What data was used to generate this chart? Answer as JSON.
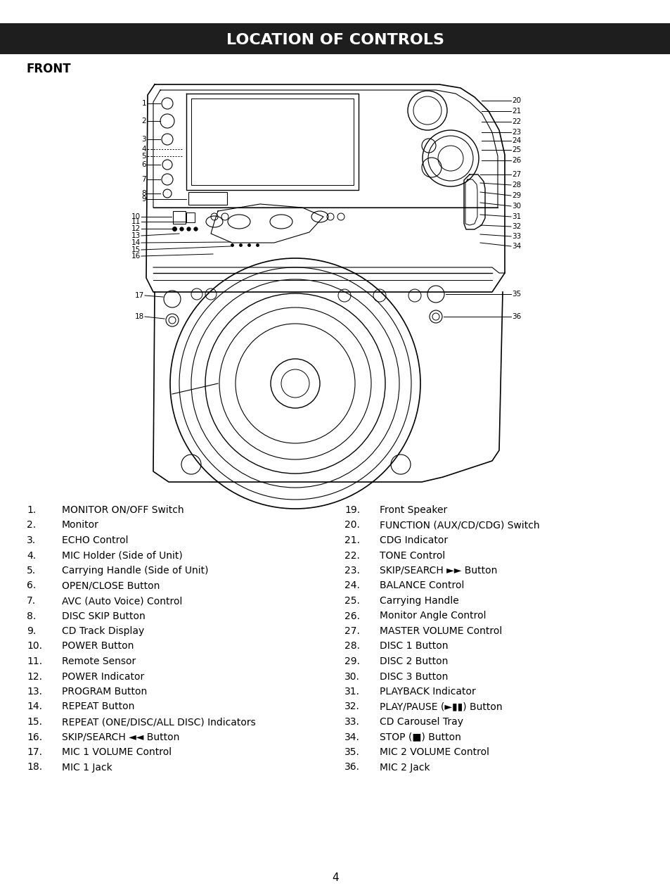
{
  "title": "LOCATION OF CONTROLS",
  "subtitle": "FRONT",
  "title_bg": "#1e1e1e",
  "title_color": "#ffffff",
  "page_number": "4",
  "left_items": [
    {
      "num": "1.",
      "text": "MONITOR ON/OFF Switch"
    },
    {
      "num": "2.",
      "text": "Monitor"
    },
    {
      "num": "3.",
      "text": "ECHO Control"
    },
    {
      "num": "4.",
      "text": "MIC Holder (Side of Unit)"
    },
    {
      "num": "5.",
      "text": "Carrying Handle (Side of Unit)"
    },
    {
      "num": "6.",
      "text": "OPEN/CLOSE Button"
    },
    {
      "num": "7.",
      "text": "AVC (Auto Voice) Control"
    },
    {
      "num": "8.",
      "text": "DISC SKIP Button"
    },
    {
      "num": "9.",
      "text": "CD Track Display"
    },
    {
      "num": "10.",
      "text": "POWER Button"
    },
    {
      "num": "11.",
      "text": "Remote Sensor"
    },
    {
      "num": "12.",
      "text": "POWER Indicator"
    },
    {
      "num": "13.",
      "text": "PROGRAM Button"
    },
    {
      "num": "14.",
      "text": "REPEAT Button"
    },
    {
      "num": "15.",
      "text": "REPEAT (ONE/DISC/ALL DISC) Indicators"
    },
    {
      "num": "16.",
      "text": "SKIP/SEARCH ◄◄ Button"
    },
    {
      "num": "17.",
      "text": "MIC 1 VOLUME Control"
    },
    {
      "num": "18.",
      "text": "MIC 1 Jack"
    }
  ],
  "right_items": [
    {
      "num": "19.",
      "text": "Front Speaker"
    },
    {
      "num": "20.",
      "text": "FUNCTION (AUX/CD/CDG) Switch"
    },
    {
      "num": "21.",
      "text": "CDG Indicator"
    },
    {
      "num": "22.",
      "text": "TONE Control"
    },
    {
      "num": "23.",
      "text": "SKIP/SEARCH ►► Button"
    },
    {
      "num": "24.",
      "text": "BALANCE Control"
    },
    {
      "num": "25.",
      "text": "Carrying Handle"
    },
    {
      "num": "26.",
      "text": "Monitor Angle Control"
    },
    {
      "num": "27.",
      "text": "MASTER VOLUME Control"
    },
    {
      "num": "28.",
      "text": "DISC 1 Button"
    },
    {
      "num": "29.",
      "text": "DISC 2 Button"
    },
    {
      "num": "30.",
      "text": "DISC 3 Button"
    },
    {
      "num": "31.",
      "text": "PLAYBACK Indicator"
    },
    {
      "num": "32.",
      "text": "PLAY/PAUSE (►▮▮) Button"
    },
    {
      "num": "33.",
      "text": "CD Carousel Tray"
    },
    {
      "num": "34.",
      "text": "STOP (■) Button"
    },
    {
      "num": "35.",
      "text": "MIC 2 VOLUME Control"
    },
    {
      "num": "36.",
      "text": "MIC 2 Jack"
    }
  ]
}
